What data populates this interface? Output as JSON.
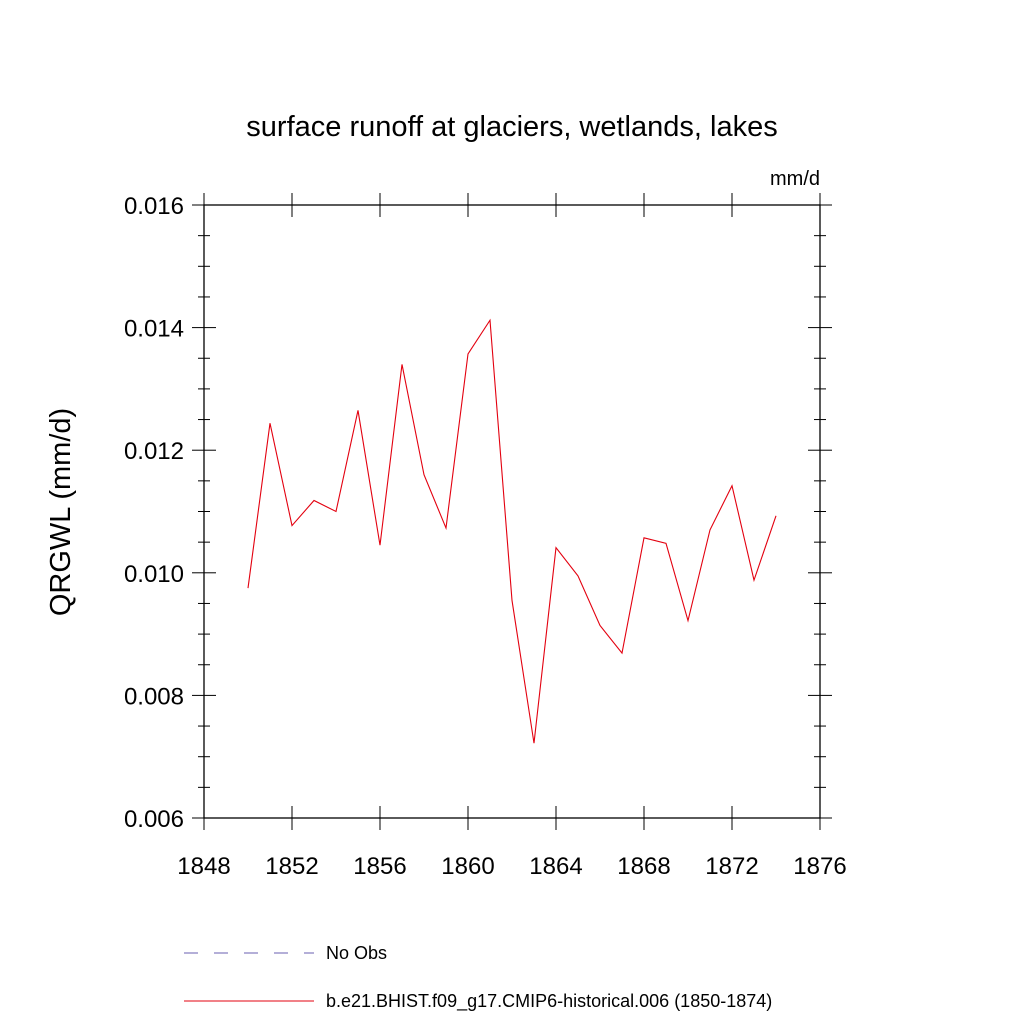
{
  "chart_data": {
    "type": "line",
    "title": "surface runoff at glaciers, wetlands, lakes",
    "units": "mm/d",
    "ylabel": "QRGWL  (mm/d)",
    "xlabel": "",
    "xlim": [
      1848,
      1876
    ],
    "ylim": [
      0.006,
      0.016
    ],
    "x_ticks": [
      1848,
      1852,
      1856,
      1860,
      1864,
      1868,
      1872,
      1876
    ],
    "x_tick_labels": [
      "1848",
      "1852",
      "1856",
      "1860",
      "1864",
      "1868",
      "1872",
      "1876"
    ],
    "y_ticks": [
      0.006,
      0.008,
      0.01,
      0.012,
      0.014,
      0.016
    ],
    "y_tick_labels": [
      "0.006",
      "0.008",
      "0.010",
      "0.012",
      "0.014",
      "0.016"
    ],
    "grid": false,
    "legend_position": "bottom",
    "series": [
      {
        "name": "No Obs",
        "color": "#6a5fb0",
        "style": "dashed",
        "x": [],
        "values": []
      },
      {
        "name": "b.e21.BHIST.f09_g17.CMIP6-historical.006 (1850-1874)",
        "color": "#e3000f",
        "style": "solid",
        "x": [
          1850,
          1851,
          1852,
          1853,
          1854,
          1855,
          1856,
          1857,
          1858,
          1859,
          1860,
          1861,
          1862,
          1863,
          1864,
          1865,
          1866,
          1867,
          1868,
          1869,
          1870,
          1871,
          1872,
          1873,
          1874
        ],
        "values": [
          0.00975,
          0.01244,
          0.01077,
          0.01118,
          0.011,
          0.01265,
          0.01045,
          0.0134,
          0.0116,
          0.01073,
          0.01357,
          0.01412,
          0.00955,
          0.00722,
          0.01041,
          0.00995,
          0.00914,
          0.00869,
          0.01057,
          0.01048,
          0.00922,
          0.0107,
          0.01142,
          0.00988,
          0.01093
        ]
      }
    ]
  }
}
